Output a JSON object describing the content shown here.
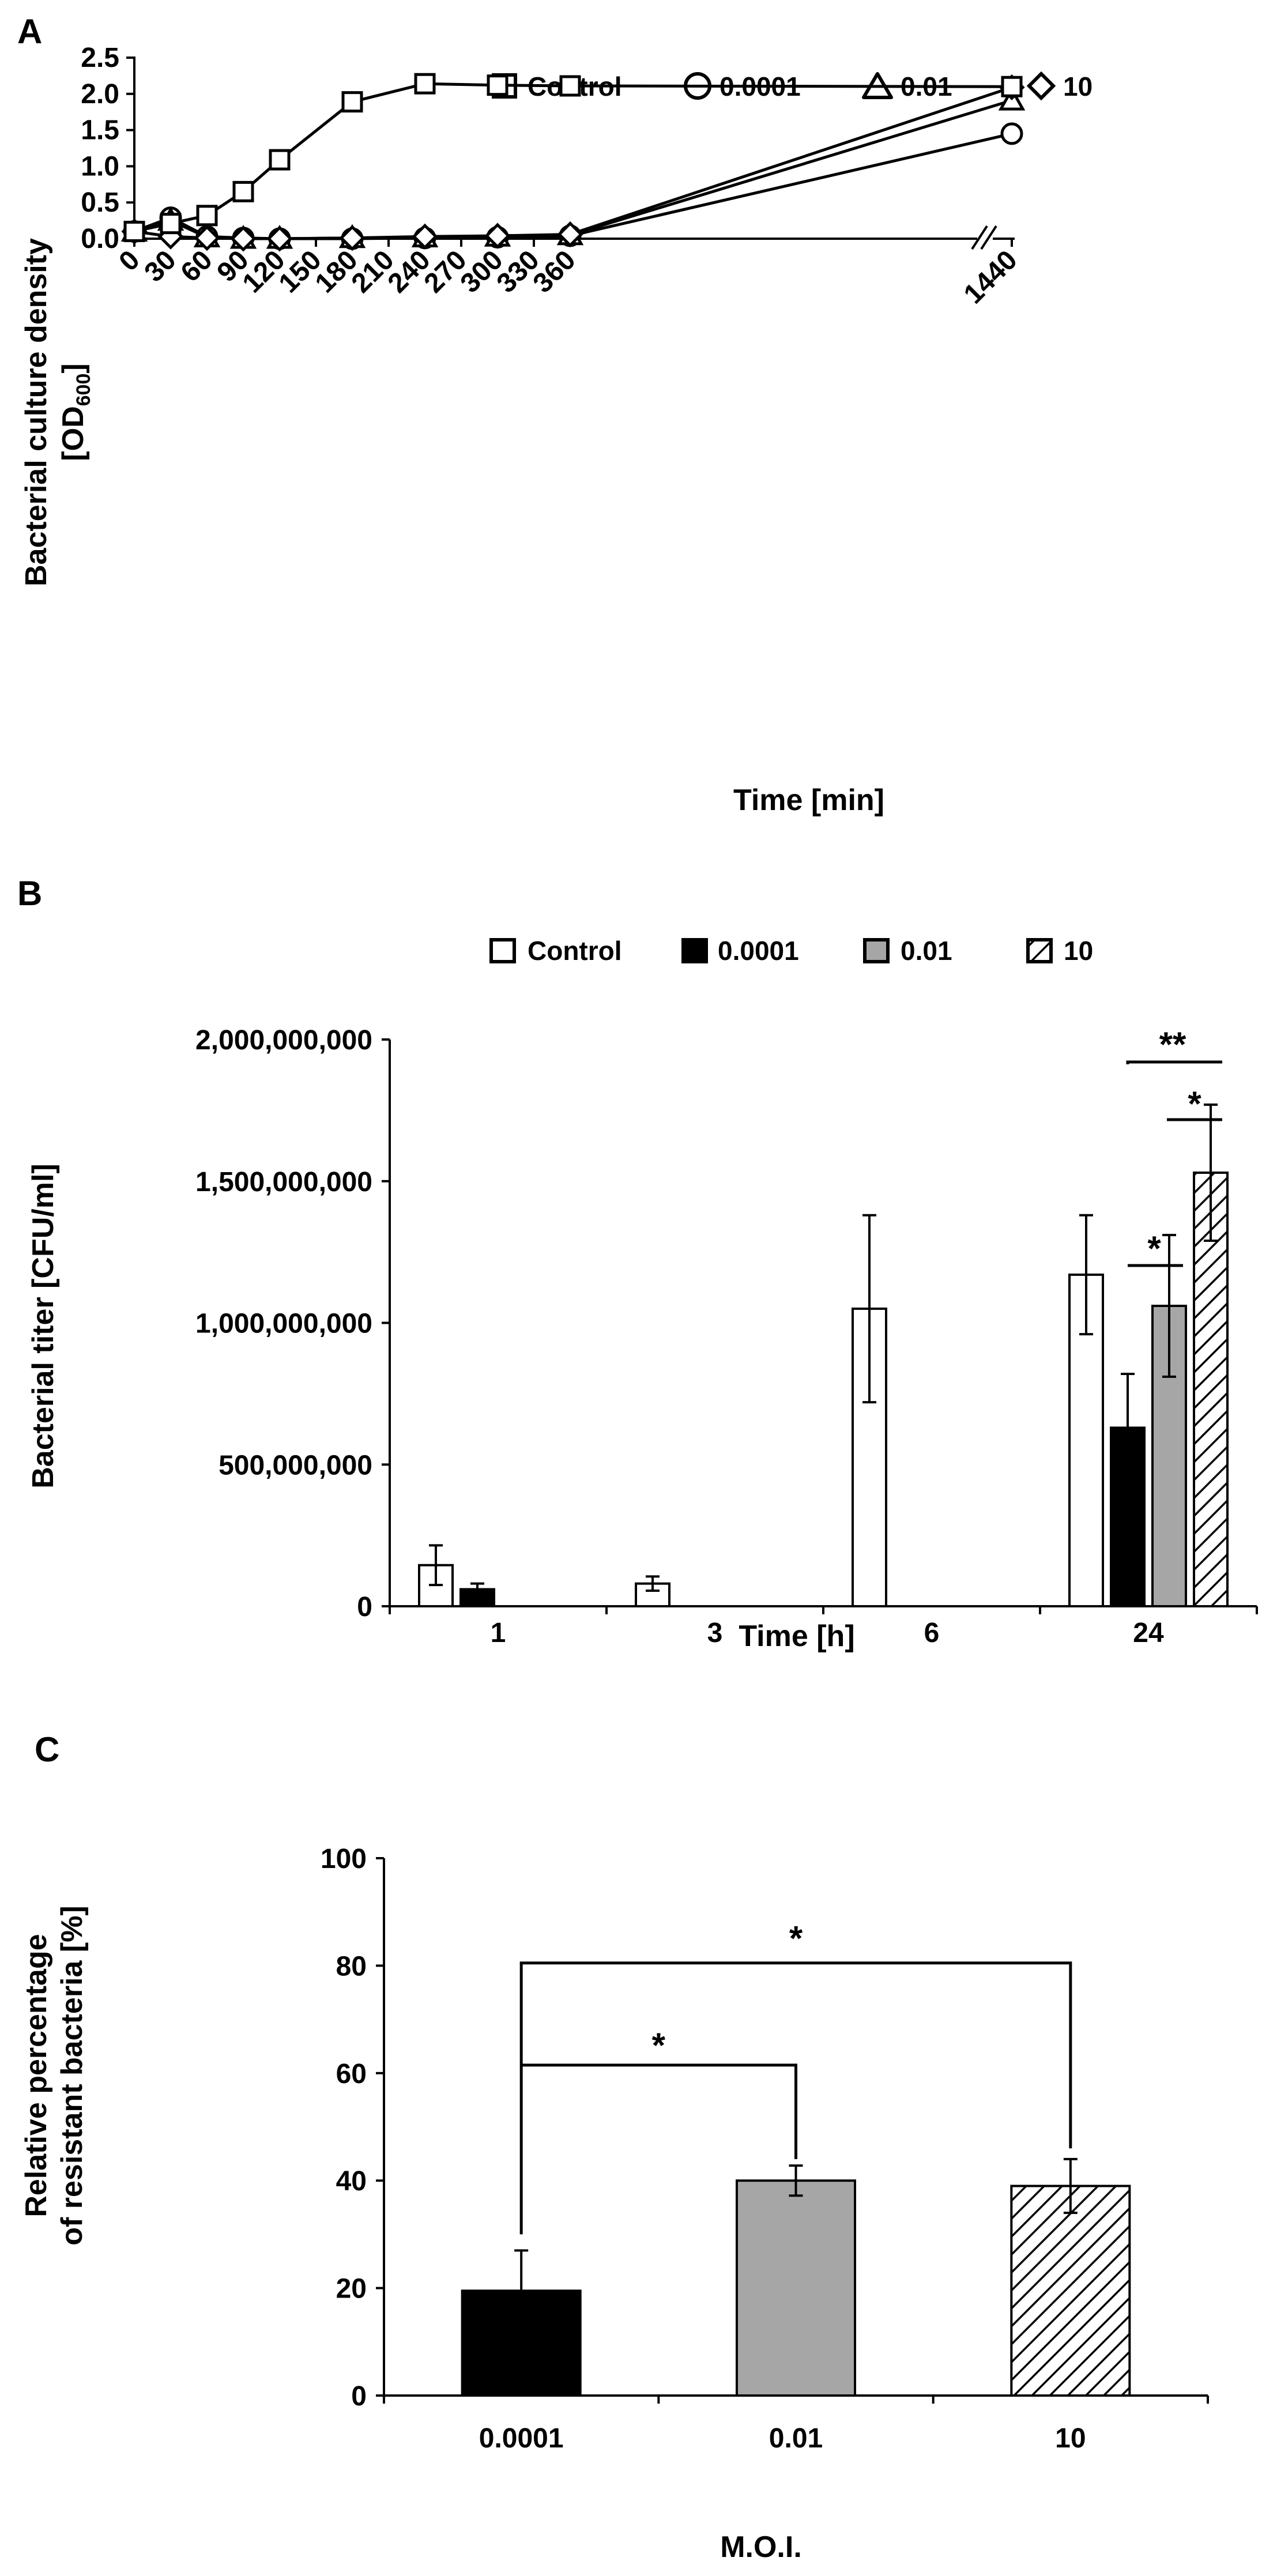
{
  "chart_data": [
    {
      "type": "line",
      "panel": "A",
      "title": "",
      "xlabel": "Time [min]",
      "ylabel": "Bacterial culture density",
      "ylabel_line2": "[OD600]",
      "ylabel_line2_base": "[OD",
      "ylabel_line2_sub": "600",
      "ylabel_line2_end": "]",
      "ylim": [
        0,
        2.5
      ],
      "yticks": [
        "0.0",
        "0.5",
        "1.0",
        "1.5",
        "2.0",
        "2.5"
      ],
      "x": [
        0,
        30,
        60,
        90,
        120,
        150,
        180,
        210,
        240,
        270,
        300,
        330,
        360,
        1440
      ],
      "xtick_labels": [
        "0",
        "30",
        "60",
        "90",
        "120",
        "150",
        "180",
        "210",
        "240",
        "270",
        "300",
        "330",
        "360",
        "1440"
      ],
      "axis_break": "between 360 and 1440",
      "legend": [
        "Control",
        "0.0001",
        "0.01",
        "10"
      ],
      "series": [
        {
          "name": "Control",
          "marker": "square",
          "points": [
            {
              "x": 0,
              "y": 0.1,
              "err": 0
            },
            {
              "x": 30,
              "y": 0.21,
              "err": 0
            },
            {
              "x": 60,
              "y": 0.32,
              "err": 0
            },
            {
              "x": 90,
              "y": 0.65,
              "err": 0
            },
            {
              "x": 120,
              "y": 1.09,
              "err": 0
            },
            {
              "x": 180,
              "y": 1.89,
              "err": 0
            },
            {
              "x": 240,
              "y": 2.14,
              "err": 0
            },
            {
              "x": 300,
              "y": 2.12,
              "err": 0.08
            },
            {
              "x": 360,
              "y": 2.11,
              "err": 0.05
            },
            {
              "x": 1440,
              "y": 2.1,
              "err": 0.08
            }
          ]
        },
        {
          "name": "0.0001",
          "marker": "circle",
          "points": [
            {
              "x": 0,
              "y": 0.1,
              "err": 0
            },
            {
              "x": 30,
              "y": 0.29,
              "err": 0
            },
            {
              "x": 60,
              "y": 0.03,
              "err": 0
            },
            {
              "x": 90,
              "y": 0.01,
              "err": 0
            },
            {
              "x": 120,
              "y": 0.0,
              "err": 0
            },
            {
              "x": 180,
              "y": 0.0,
              "err": 0
            },
            {
              "x": 240,
              "y": 0.01,
              "err": 0
            },
            {
              "x": 300,
              "y": 0.02,
              "err": 0
            },
            {
              "x": 360,
              "y": 0.04,
              "err": 0
            },
            {
              "x": 1440,
              "y": 1.45,
              "err": 0
            }
          ]
        },
        {
          "name": "0.01",
          "marker": "triangle",
          "points": [
            {
              "x": 0,
              "y": 0.1,
              "err": 0
            },
            {
              "x": 30,
              "y": 0.25,
              "err": 0
            },
            {
              "x": 60,
              "y": 0.02,
              "err": 0
            },
            {
              "x": 90,
              "y": 0.0,
              "err": 0
            },
            {
              "x": 120,
              "y": 0.0,
              "err": 0
            },
            {
              "x": 180,
              "y": 0.01,
              "err": 0
            },
            {
              "x": 240,
              "y": 0.02,
              "err": 0
            },
            {
              "x": 300,
              "y": 0.03,
              "err": 0
            },
            {
              "x": 360,
              "y": 0.05,
              "err": 0
            },
            {
              "x": 1440,
              "y": 1.91,
              "err": 0
            }
          ]
        },
        {
          "name": "10",
          "marker": "diamond",
          "points": [
            {
              "x": 0,
              "y": 0.1,
              "err": 0
            },
            {
              "x": 30,
              "y": 0.03,
              "err": 0
            },
            {
              "x": 60,
              "y": 0.01,
              "err": 0
            },
            {
              "x": 90,
              "y": 0.0,
              "err": 0
            },
            {
              "x": 120,
              "y": 0.0,
              "err": 0
            },
            {
              "x": 180,
              "y": 0.01,
              "err": 0
            },
            {
              "x": 240,
              "y": 0.03,
              "err": 0
            },
            {
              "x": 300,
              "y": 0.04,
              "err": 0
            },
            {
              "x": 360,
              "y": 0.06,
              "err": 0
            },
            {
              "x": 1440,
              "y": 2.09,
              "err": 0
            }
          ]
        }
      ]
    },
    {
      "type": "bar",
      "panel": "B",
      "title": "",
      "xlabel": "Time [h]",
      "ylabel": "Bacterial titer [CFU/ml]",
      "ylim": [
        0,
        2000000000
      ],
      "yticks": [
        "0",
        "500,000,000",
        "1,000,000,000",
        "1,500,000,000",
        "2,000,000,000"
      ],
      "categories": [
        "1",
        "3",
        "6",
        "24"
      ],
      "legend": [
        "Control",
        "0.0001",
        "0.01",
        "10"
      ],
      "series": [
        {
          "name": "Control",
          "fill": "white",
          "values": [
            145000000,
            80000000,
            1050000000,
            1170000000
          ],
          "errors": [
            70000000,
            25000000,
            330000000,
            210000000
          ]
        },
        {
          "name": "0.0001",
          "fill": "black",
          "values": [
            60000000,
            0,
            0,
            630000000
          ],
          "errors": [
            20000000,
            0,
            0,
            190000000
          ]
        },
        {
          "name": "0.01",
          "fill": "gray",
          "values": [
            0,
            0,
            0,
            1060000000
          ],
          "errors": [
            0,
            0,
            0,
            250000000
          ]
        },
        {
          "name": "10",
          "fill": "hatched",
          "values": [
            0,
            0,
            0,
            1530000000
          ],
          "errors": [
            0,
            0,
            0,
            240000000
          ]
        }
      ],
      "annotations": [
        {
          "label": "**",
          "from": "0.0001",
          "to": "10",
          "category": "24"
        },
        {
          "label": "*",
          "from": "0.01",
          "to": "10",
          "category": "24"
        },
        {
          "label": "*",
          "from": "0.0001",
          "to": "0.01",
          "category": "24"
        }
      ]
    },
    {
      "type": "bar",
      "panel": "C",
      "title": "",
      "xlabel": "M.O.I.",
      "ylabel": "Relative percentage",
      "ylabel_line2": "of resistant bacteria [%]",
      "ylim": [
        0,
        100
      ],
      "yticks": [
        "0",
        "20",
        "40",
        "60",
        "80",
        "100"
      ],
      "categories": [
        "0.0001",
        "0.01",
        "10"
      ],
      "values": [
        19.5,
        40,
        39
      ],
      "errors": [
        7.5,
        2.8,
        5
      ],
      "fills": [
        "black",
        "gray",
        "hatched"
      ],
      "annotations": [
        {
          "label": "*",
          "from": "0.0001",
          "to": "0.01"
        },
        {
          "label": "*",
          "from": "0.0001",
          "to": "10"
        }
      ]
    }
  ]
}
